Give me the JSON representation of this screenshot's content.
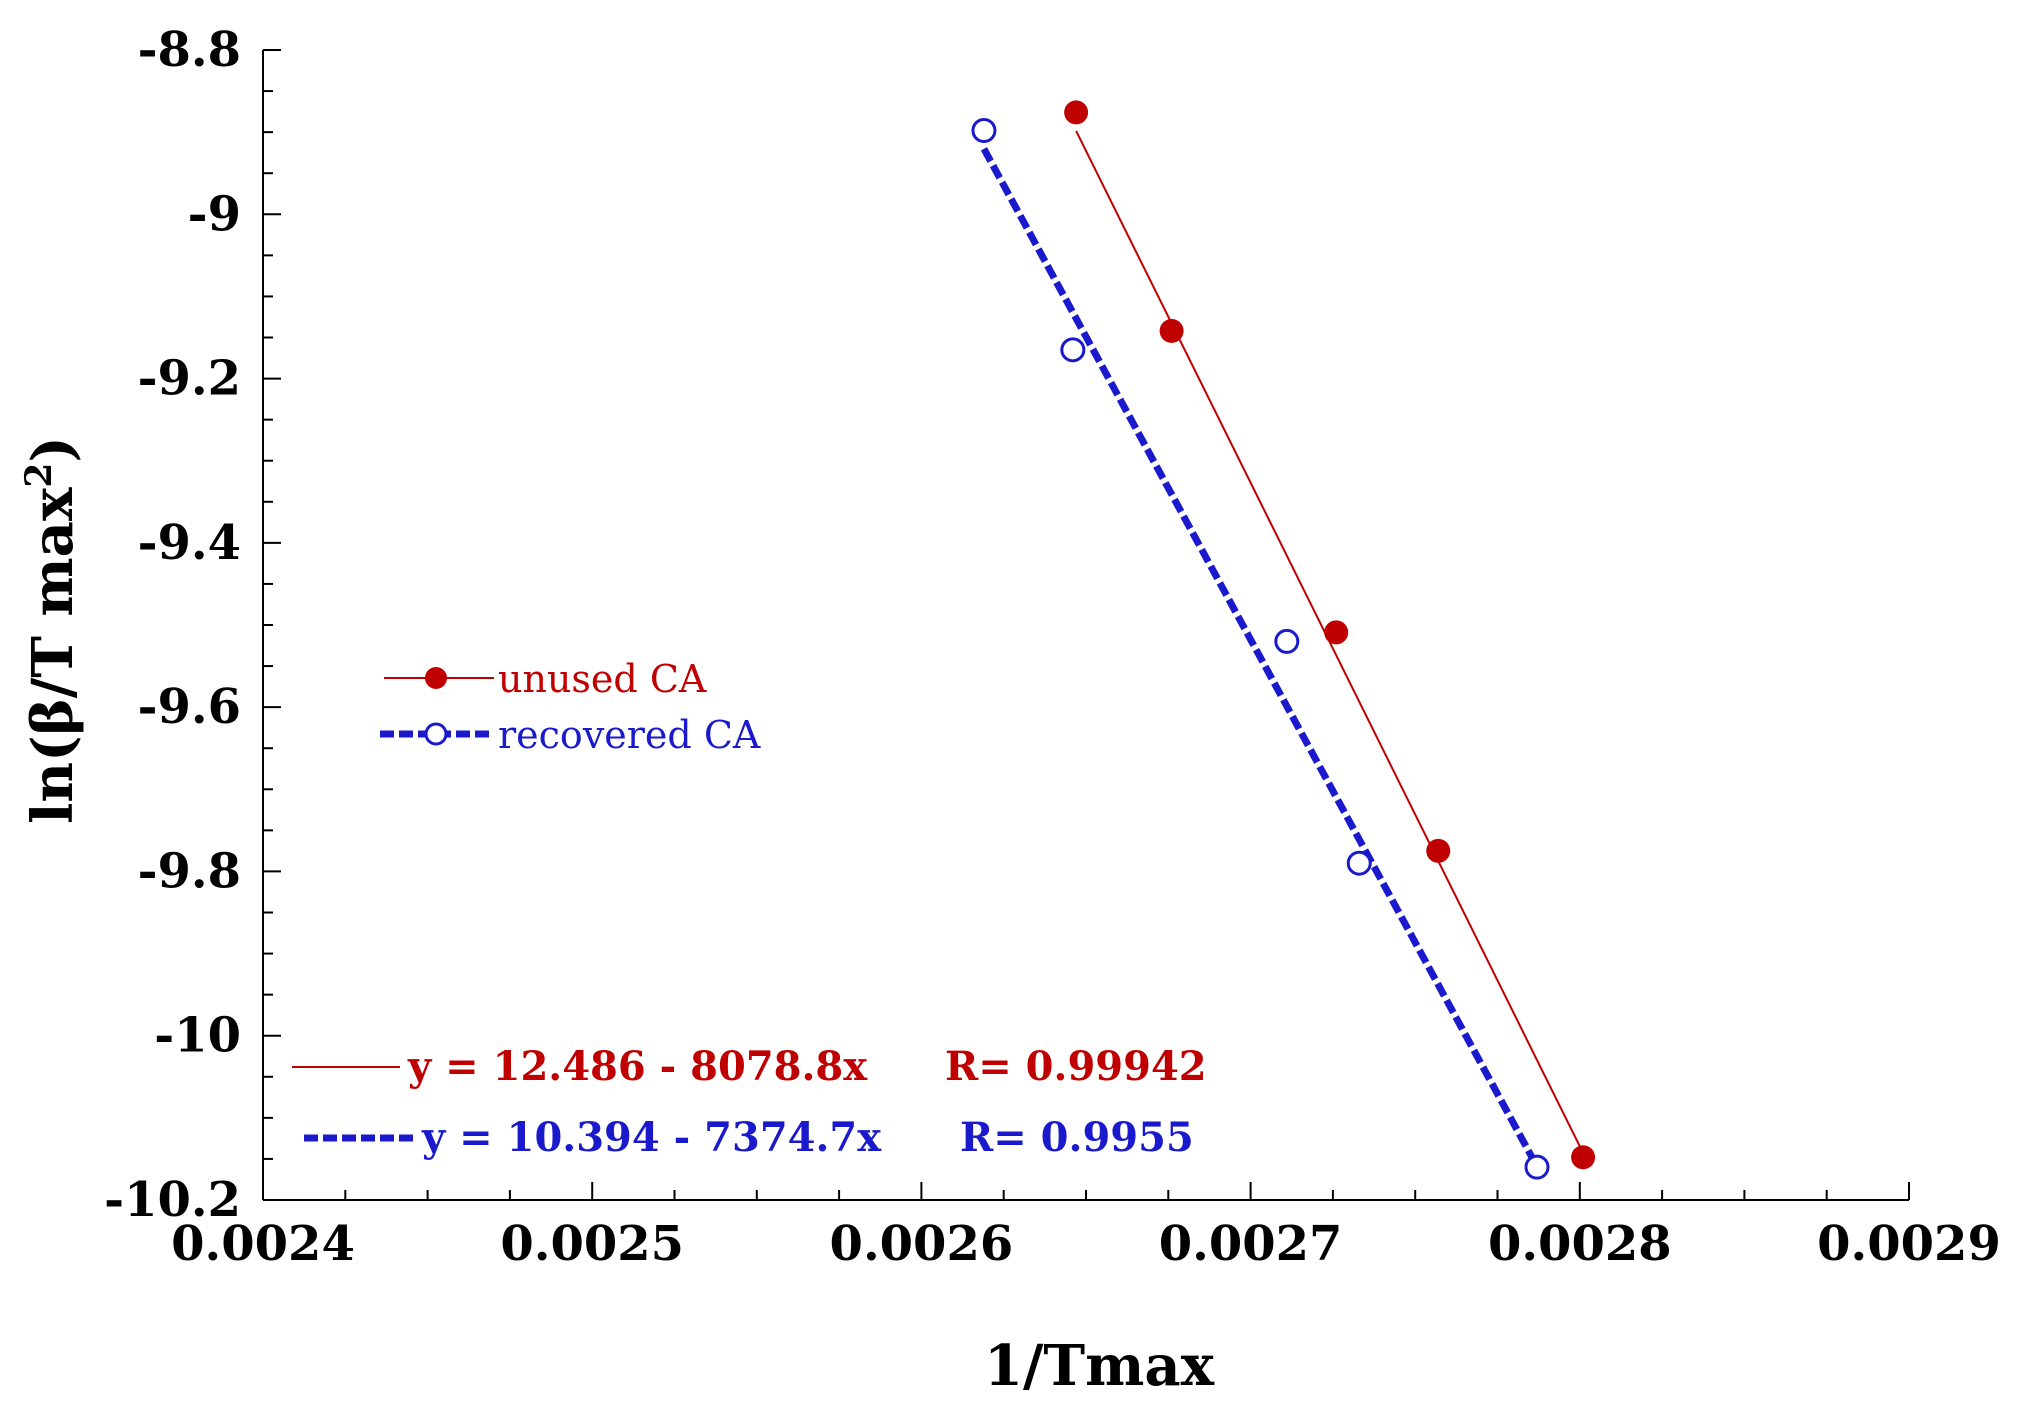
{
  "chart_data": {
    "type": "scatter",
    "title": "",
    "xlabel": "1/Tmax",
    "ylabel_base": "ln(β/T max",
    "ylabel_sup": "2",
    "ylabel_close": ")",
    "xlim": [
      0.0024,
      0.0029
    ],
    "ylim": [
      -10.2,
      -8.8
    ],
    "x_ticks": [
      0.0024,
      0.0025,
      0.0026,
      0.0027,
      0.0028,
      0.0029
    ],
    "x_tick_labels": [
      "0.0024",
      "0.0025",
      "0.0026",
      "0.0027",
      "0.0028",
      "0.0029"
    ],
    "y_ticks": [
      -8.8,
      -9.0,
      -9.2,
      -9.4,
      -9.6,
      -9.8,
      -10.0,
      -10.2
    ],
    "y_tick_labels": [
      "-8.8",
      "-9",
      "-9.2",
      "-9.4",
      "-9.6",
      "-9.8",
      "-10",
      "-10.2"
    ],
    "grid": false,
    "legend_position": "center-left",
    "series": [
      {
        "name": "unused CA",
        "color": "#c00000",
        "marker": "filled-circle",
        "line": "solid",
        "points": [
          {
            "x": 0.002647,
            "y": -8.876
          },
          {
            "x": 0.002676,
            "y": -9.142
          },
          {
            "x": 0.002726,
            "y": -9.509
          },
          {
            "x": 0.002757,
            "y": -9.775
          },
          {
            "x": 0.002801,
            "y": -10.148
          }
        ],
        "fit": {
          "intercept": 12.486,
          "slope": -8078.8,
          "x_range": [
            0.002647,
            0.002801
          ]
        },
        "equation": "y = 12.486 - 8078.8x",
        "r_label": "R= 0.99942"
      },
      {
        "name": "recovered CA",
        "color": "#1a1acc",
        "marker": "open-circle",
        "line": "dashed",
        "points": [
          {
            "x": 0.002619,
            "y": -8.898
          },
          {
            "x": 0.002646,
            "y": -9.165
          },
          {
            "x": 0.002711,
            "y": -9.52
          },
          {
            "x": 0.002733,
            "y": -9.79
          },
          {
            "x": 0.002787,
            "y": -10.16
          }
        ],
        "fit": {
          "intercept": 10.394,
          "slope": -7374.7,
          "x_range": [
            0.002619,
            0.002787
          ]
        },
        "equation": "y = 10.394 - 7374.7x",
        "r_label": "R= 0.9955"
      }
    ]
  }
}
